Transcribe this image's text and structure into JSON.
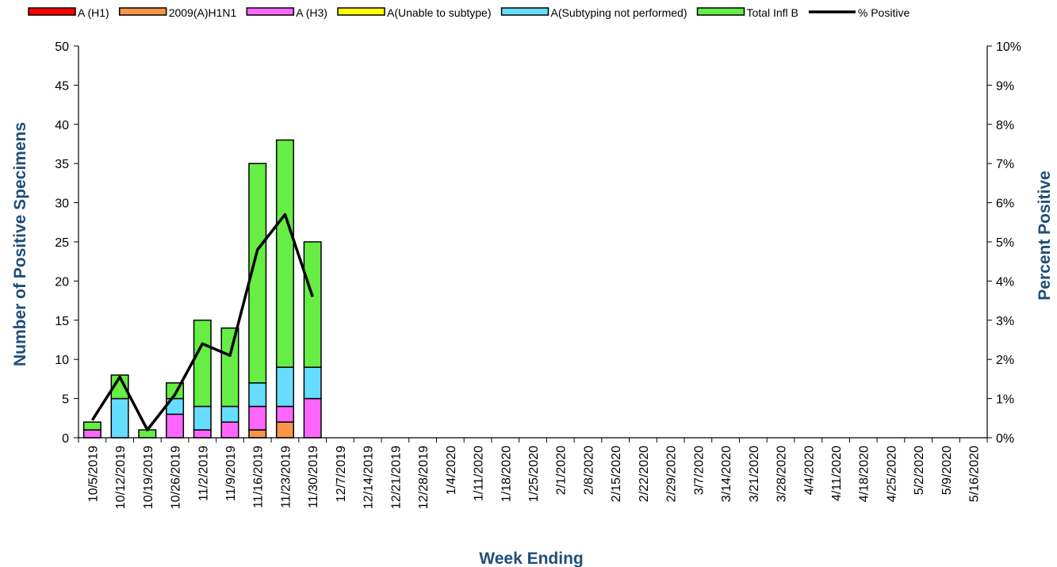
{
  "chart_data": {
    "type": "bar",
    "stacked": true,
    "categories": [
      "10/5/2019",
      "10/12/2019",
      "10/19/2019",
      "10/26/2019",
      "11/2/2019",
      "11/9/2019",
      "11/16/2019",
      "11/23/2019",
      "11/30/2019",
      "12/7/2019",
      "12/14/2019",
      "12/21/2019",
      "12/28/2019",
      "1/4/2020",
      "1/11/2020",
      "1/18/2020",
      "1/25/2020",
      "2/1/2020",
      "2/8/2020",
      "2/15/2020",
      "2/22/2020",
      "2/29/2020",
      "3/7/2020",
      "3/14/2020",
      "3/21/2020",
      "3/28/2020",
      "4/4/2020",
      "4/11/2020",
      "4/18/2020",
      "4/25/2020",
      "5/2/2020",
      "5/9/2020",
      "5/16/2020"
    ],
    "series": [
      {
        "name": "A (H1)",
        "color": "#ff0000",
        "values": [
          0,
          0,
          0,
          0,
          0,
          0,
          0,
          0,
          0,
          0,
          0,
          0,
          0,
          0,
          0,
          0,
          0,
          0,
          0,
          0,
          0,
          0,
          0,
          0,
          0,
          0,
          0,
          0,
          0,
          0,
          0,
          0,
          0
        ]
      },
      {
        "name": "2009(A)H1N1",
        "color": "#f79646",
        "values": [
          0,
          0,
          0,
          0,
          0,
          0,
          1,
          2,
          0,
          0,
          0,
          0,
          0,
          0,
          0,
          0,
          0,
          0,
          0,
          0,
          0,
          0,
          0,
          0,
          0,
          0,
          0,
          0,
          0,
          0,
          0,
          0,
          0
        ]
      },
      {
        "name": "A (H3)",
        "color": "#ff66ff",
        "values": [
          1,
          0,
          0,
          3,
          1,
          2,
          3,
          2,
          5,
          0,
          0,
          0,
          0,
          0,
          0,
          0,
          0,
          0,
          0,
          0,
          0,
          0,
          0,
          0,
          0,
          0,
          0,
          0,
          0,
          0,
          0,
          0,
          0
        ]
      },
      {
        "name": "A(Unable to subtype)",
        "color": "#ffff00",
        "values": [
          0,
          0,
          0,
          0,
          0,
          0,
          0,
          0,
          0,
          0,
          0,
          0,
          0,
          0,
          0,
          0,
          0,
          0,
          0,
          0,
          0,
          0,
          0,
          0,
          0,
          0,
          0,
          0,
          0,
          0,
          0,
          0,
          0
        ]
      },
      {
        "name": "A(Subtyping not performed)",
        "color": "#66ddff",
        "values": [
          0,
          5,
          0,
          2,
          3,
          2,
          3,
          5,
          4,
          0,
          0,
          0,
          0,
          0,
          0,
          0,
          0,
          0,
          0,
          0,
          0,
          0,
          0,
          0,
          0,
          0,
          0,
          0,
          0,
          0,
          0,
          0,
          0
        ]
      },
      {
        "name": "Total Infl B",
        "color": "#66ee44",
        "values": [
          1,
          3,
          1,
          2,
          11,
          10,
          28,
          29,
          16,
          0,
          0,
          0,
          0,
          0,
          0,
          0,
          0,
          0,
          0,
          0,
          0,
          0,
          0,
          0,
          0,
          0,
          0,
          0,
          0,
          0,
          0,
          0,
          0
        ]
      }
    ],
    "line": {
      "name": "% Positive",
      "color": "#000000",
      "values": [
        0.45,
        1.55,
        0.2,
        1.1,
        2.4,
        2.1,
        4.8,
        5.7,
        3.6
      ]
    },
    "xlabel": "Week Ending",
    "ylabel": "Number of  Positive Specimens",
    "y2label": "Percent Positive",
    "ylim": [
      0,
      50
    ],
    "yticks": [
      "0",
      "5",
      "10",
      "15",
      "20",
      "25",
      "30",
      "35",
      "40",
      "45",
      "50"
    ],
    "y2lim": [
      0,
      10
    ],
    "y2ticks": [
      "0%",
      "1%",
      "2%",
      "3%",
      "4%",
      "5%",
      "6%",
      "7%",
      "8%",
      "9%",
      "10%"
    ],
    "legend_position": "top",
    "grid": false
  }
}
